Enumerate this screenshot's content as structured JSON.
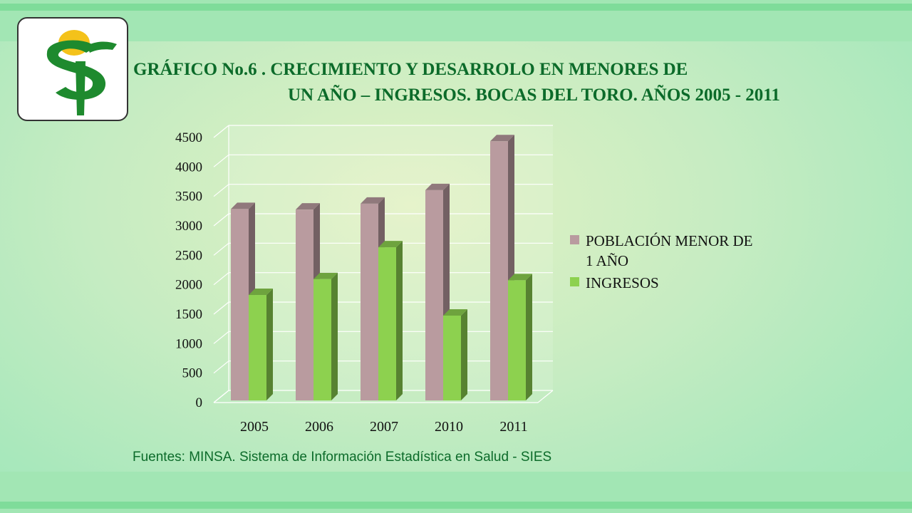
{
  "title": {
    "line1": "GRÁFICO No.6 . CRECIMIENTO Y DESARROLO EN MENORES DE",
    "line2": "UN AÑO – INGRESOS. BOCAS DEL TORO. AÑOS 2005 - 2011"
  },
  "source": "Fuentes: MINSA. Sistema de Información Estadística en Salud - SIES",
  "colors": {
    "series_poblacion": "#b99b9f",
    "series_ingresos": "#8dd14f",
    "title": "#0c6b2a",
    "logo_green": "#1e8a2e",
    "logo_yellow": "#f4c21a"
  },
  "chart_data": {
    "type": "bar",
    "categories": [
      "2005",
      "2006",
      "2007",
      "2010",
      "2011"
    ],
    "series": [
      {
        "name": "POBLACIÓN MENOR DE 1 AÑO",
        "values": [
          3250,
          3240,
          3340,
          3570,
          4400
        ]
      },
      {
        "name": "INGRESOS",
        "values": [
          1790,
          2060,
          2600,
          1440,
          2040
        ]
      }
    ],
    "ylim": [
      0,
      4500
    ],
    "yticks": [
      0,
      500,
      1000,
      1500,
      2000,
      2500,
      3000,
      3500,
      4000,
      4500
    ],
    "grid": true,
    "legend_position": "right",
    "style": "3d clustered columns"
  }
}
